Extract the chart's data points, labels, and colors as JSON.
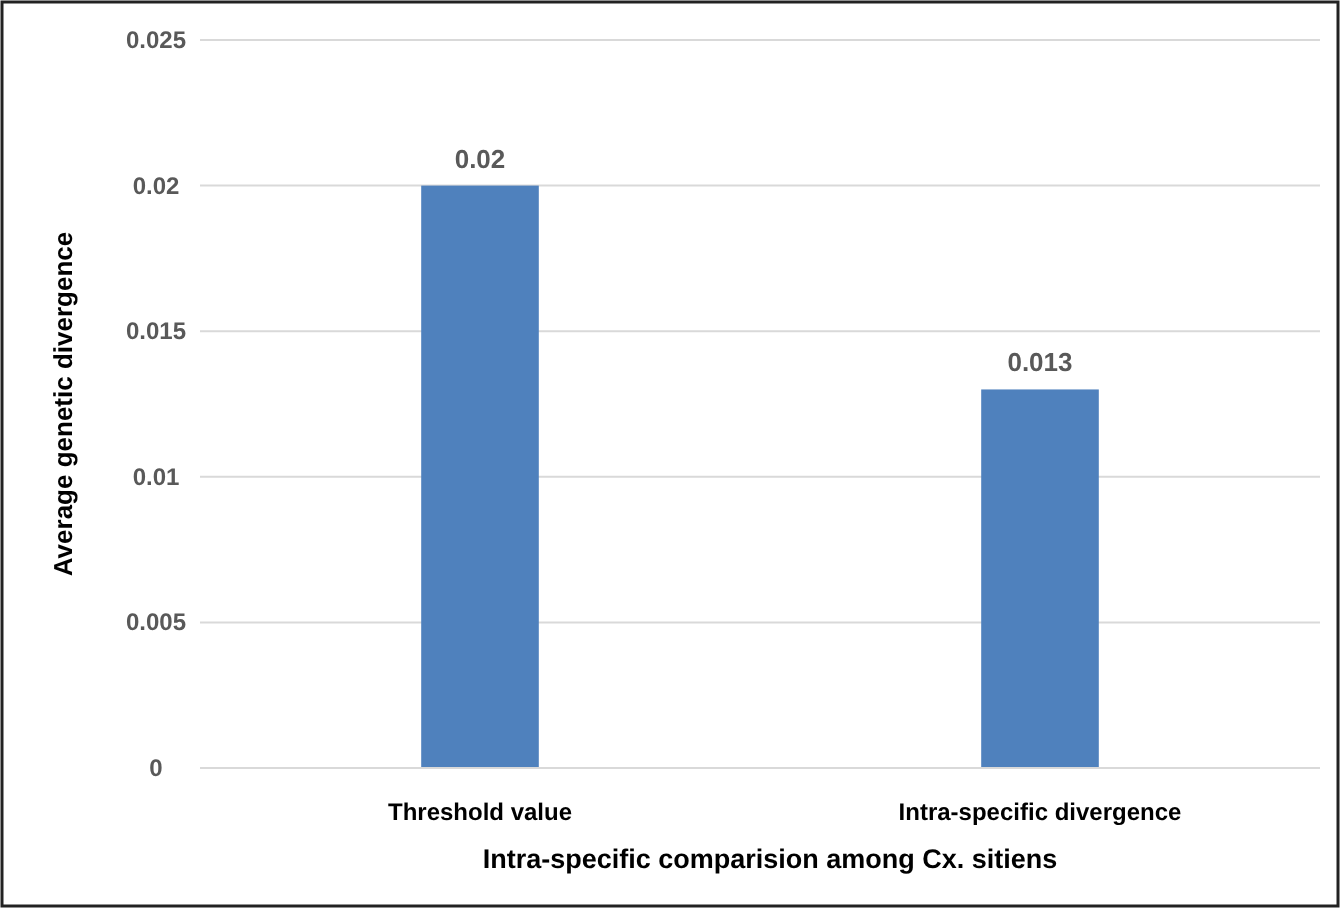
{
  "chart_data": {
    "type": "bar",
    "xlabel": "Intra-specific comparision among Cx. sitiens",
    "ylabel": "Average genetic divergence",
    "categories": [
      "Threshold value",
      "Intra-specific divergence"
    ],
    "values": [
      0.02,
      0.013
    ],
    "color": "#4f81bd",
    "data_labels": true,
    "ylim": [
      0,
      0.025
    ],
    "yticks": [
      0,
      0.005,
      0.01,
      0.015,
      0.02,
      0.025
    ],
    "grid": "y"
  }
}
